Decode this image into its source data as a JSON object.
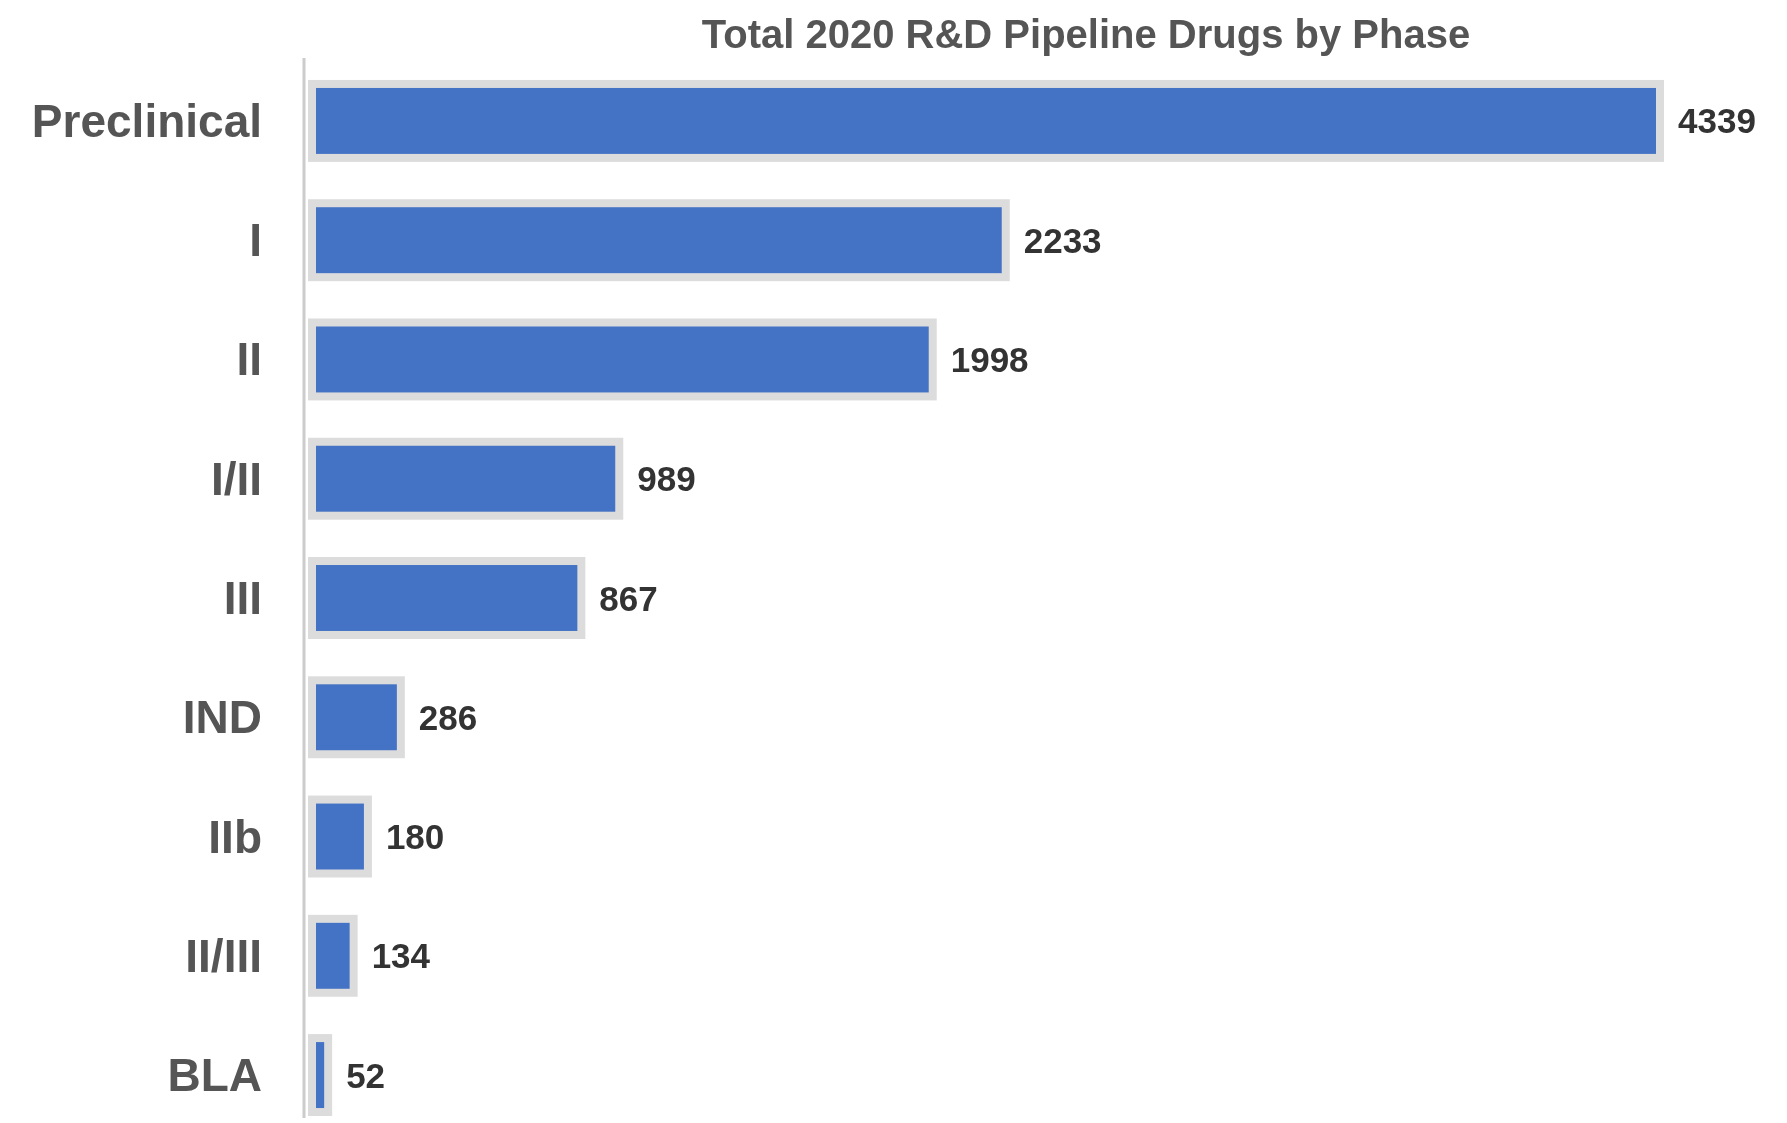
{
  "chart_data": {
    "type": "bar",
    "orientation": "horizontal",
    "title": "Total 2020 R&D Pipeline Drugs by Phase",
    "categories": [
      "Preclinical",
      "I",
      "II",
      "I/II",
      "III",
      "IND",
      "IIb",
      "II/III",
      "BLA"
    ],
    "values": [
      4339,
      2233,
      1998,
      989,
      867,
      286,
      180,
      134,
      52
    ],
    "color": "#4472c4",
    "data_labels": true
  }
}
